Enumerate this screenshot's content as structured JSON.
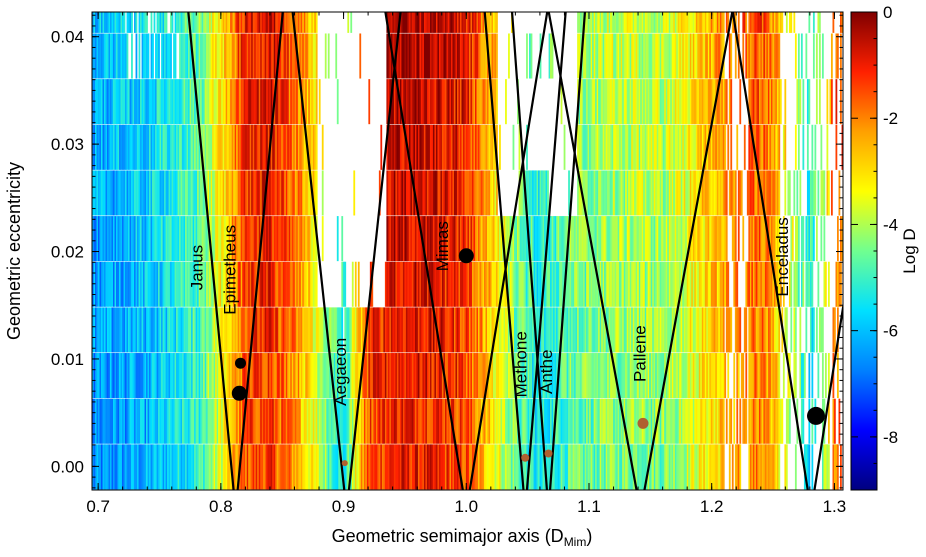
{
  "chart_data": {
    "type": "heatmap",
    "title": "",
    "xlabel": "Geometric semimajor axis (D",
    "xlabel_sub": "Mim",
    "xlabel_close": ")",
    "ylabel": "Geometric eccentricity",
    "xlim": [
      0.695,
      1.307
    ],
    "ylim": [
      -0.0022,
      0.0423
    ],
    "xticks": [
      0.7,
      0.8,
      0.9,
      1.0,
      1.1,
      1.2,
      1.3
    ],
    "xtick_labels": [
      "0.7",
      "0.8",
      "0.9",
      "1.0",
      "1.1",
      "1.2",
      "1.3"
    ],
    "yticks": [
      0.0,
      0.01,
      0.02,
      0.03,
      0.04
    ],
    "ytick_labels": [
      "0.00",
      "0.01",
      "0.02",
      "0.03",
      "0.04"
    ],
    "colorbar": {
      "label": "Log D",
      "range": [
        -9,
        0
      ],
      "ticks": [
        0,
        -2,
        -4,
        -6,
        -8
      ],
      "tick_labels": [
        "0",
        "-2",
        "-4",
        "-6",
        "-8"
      ],
      "colormap": [
        "#000080",
        "#0000ff",
        "#0080ff",
        "#00e0ff",
        "#70ff90",
        "#ffff00",
        "#ffa000",
        "#ff2000",
        "#800000"
      ]
    },
    "stability_profile": {
      "a": [
        0.7,
        0.74,
        0.78,
        0.8,
        0.82,
        0.84,
        0.86,
        0.88,
        0.9,
        0.92,
        0.94,
        0.96,
        0.98,
        1.0,
        1.02,
        1.04,
        1.06,
        1.08,
        1.1,
        1.12,
        1.14,
        1.16,
        1.18,
        1.2,
        1.22,
        1.24,
        1.26,
        1.28,
        1.29,
        1.3
      ],
      "log_d": [
        -6.6,
        -6.2,
        -5.2,
        -3.6,
        -1.6,
        -1.3,
        -2.2,
        -3.8,
        -5.5,
        -1.5,
        -1.0,
        -1.0,
        -1.2,
        -1.5,
        -3.0,
        -4.6,
        -5.6,
        -4.8,
        -4.6,
        -4.4,
        -4.3,
        -4.4,
        -3.8,
        -3.0,
        -2.4,
        -2.0,
        -3.5,
        -5.6,
        -4.5,
        -2.0
      ]
    },
    "resonance_wedges": [
      {
        "center": 0.812,
        "half_width_at_top": 0.035
      },
      {
        "center": 0.9025,
        "half_width_at_top": 0.04
      },
      {
        "center": 1.0,
        "half_width_at_top": 0.06
      },
      {
        "center": 1.048,
        "half_width_at_top": 0.03
      },
      {
        "center": 1.067,
        "half_width_at_top": 0.027
      },
      {
        "center": 1.142,
        "half_width_at_top": 0.068
      },
      {
        "center": 1.281,
        "half_width_at_top": 0.058
      }
    ],
    "moons": [
      {
        "name": "Janus",
        "a": 0.815,
        "e": 0.0068,
        "size": "large",
        "color": "#000000",
        "label_a": 0.785,
        "label_e": 0.0185
      },
      {
        "name": "Epimetheus",
        "a": 0.816,
        "e": 0.0096,
        "size": "medium",
        "color": "#000000",
        "label_a": 0.812,
        "label_e": 0.0183
      },
      {
        "name": "Aegaeon",
        "a": 0.901,
        "e": 0.0003,
        "size": "tiny",
        "color": "#b06030",
        "label_a": 0.902,
        "label_e": 0.0088
      },
      {
        "name": "Mimas",
        "a": 1.0,
        "e": 0.0196,
        "size": "large",
        "color": "#000000",
        "label_a": 0.985,
        "label_e": 0.0205
      },
      {
        "name": "Methone",
        "a": 1.048,
        "e": 0.0008,
        "size": "small",
        "color": "#b06030",
        "label_a": 1.049,
        "label_e": 0.0095
      },
      {
        "name": "Anthe",
        "a": 1.067,
        "e": 0.0012,
        "size": "small",
        "color": "#b06030",
        "label_a": 1.07,
        "label_e": 0.0088
      },
      {
        "name": "Pallene",
        "a": 1.144,
        "e": 0.004,
        "size": "medium",
        "color": "#b06030",
        "label_a": 1.146,
        "label_e": 0.0105
      },
      {
        "name": "Enceladus",
        "a": 1.285,
        "e": 0.0047,
        "size": "xlarge",
        "color": "#000000",
        "label_a": 1.262,
        "label_e": 0.0195
      }
    ]
  }
}
